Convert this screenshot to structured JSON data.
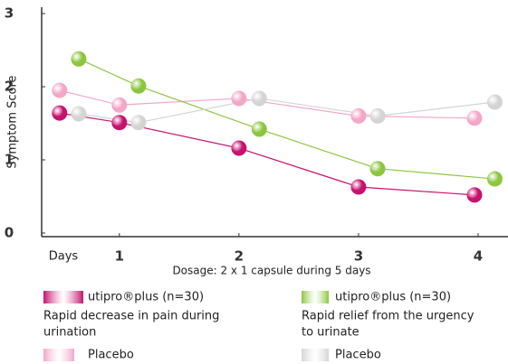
{
  "chart_data": {
    "type": "line",
    "ylabel": "Symptom Score",
    "xlabel": "Dosage: 2 x 1 capsule during 5 days",
    "x_start_label": "Days",
    "xlim": [
      0.35,
      4.25
    ],
    "xticks": [
      1,
      2,
      3,
      4
    ],
    "ylim": [
      0,
      3
    ],
    "yticks": [
      0,
      1,
      2,
      3
    ],
    "series": [
      {
        "name": "utipro®plus (n=30)",
        "color": "#c8106e",
        "description": [
          "Rapid decrease in pain during",
          "urination"
        ],
        "description_color": "#e8609a",
        "x": [
          0.5,
          1,
          2,
          3,
          3.97
        ],
        "values": [
          1.64,
          1.51,
          1.16,
          0.63,
          0.52
        ]
      },
      {
        "name": "Placebo",
        "color": "#f4a6c8",
        "x": [
          0.5,
          1,
          2,
          3,
          3.97
        ],
        "values": [
          1.95,
          1.75,
          1.84,
          1.6,
          1.57
        ]
      },
      {
        "name": "utipro®plus (n=30)",
        "color": "#8cc63f",
        "description": [
          "Rapid relief from the urgency",
          "to urinate"
        ],
        "description_color": "#7dbb2e",
        "x": [
          0.66,
          1.16,
          2.17,
          3.16,
          4.14
        ],
        "values": [
          2.38,
          2.01,
          1.42,
          0.88,
          0.74
        ]
      },
      {
        "name": "Placebo",
        "color": "#d4d4d4",
        "x": [
          0.66,
          1.16,
          2.17,
          3.16,
          4.14
        ],
        "values": [
          1.63,
          1.51,
          1.84,
          1.6,
          1.79
        ]
      }
    ]
  }
}
